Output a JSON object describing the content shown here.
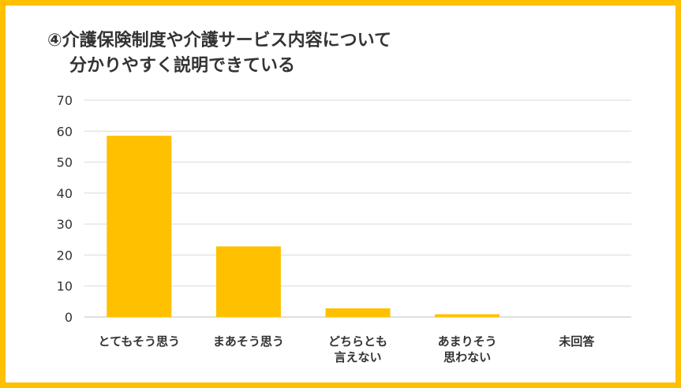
{
  "chart_data": {
    "type": "bar",
    "title": [
      "④介護保険制度や介護サービス内容について",
      "分かりやすく説明できている"
    ],
    "categories": [
      [
        "とてもそう思う"
      ],
      [
        "まあそう思う"
      ],
      [
        "どちらとも",
        "言えない"
      ],
      [
        "あまりそう",
        "思わない"
      ],
      [
        "未回答"
      ]
    ],
    "values": [
      58.5,
      22.8,
      2.8,
      0.9,
      0
    ],
    "ylim": [
      0,
      70
    ],
    "yticks": [
      0,
      10,
      20,
      30,
      40,
      50,
      60,
      70
    ],
    "grid": true,
    "bar_color": "#FFC000",
    "frame_color": "#FFC000",
    "grid_color": "#D9D9D9"
  }
}
